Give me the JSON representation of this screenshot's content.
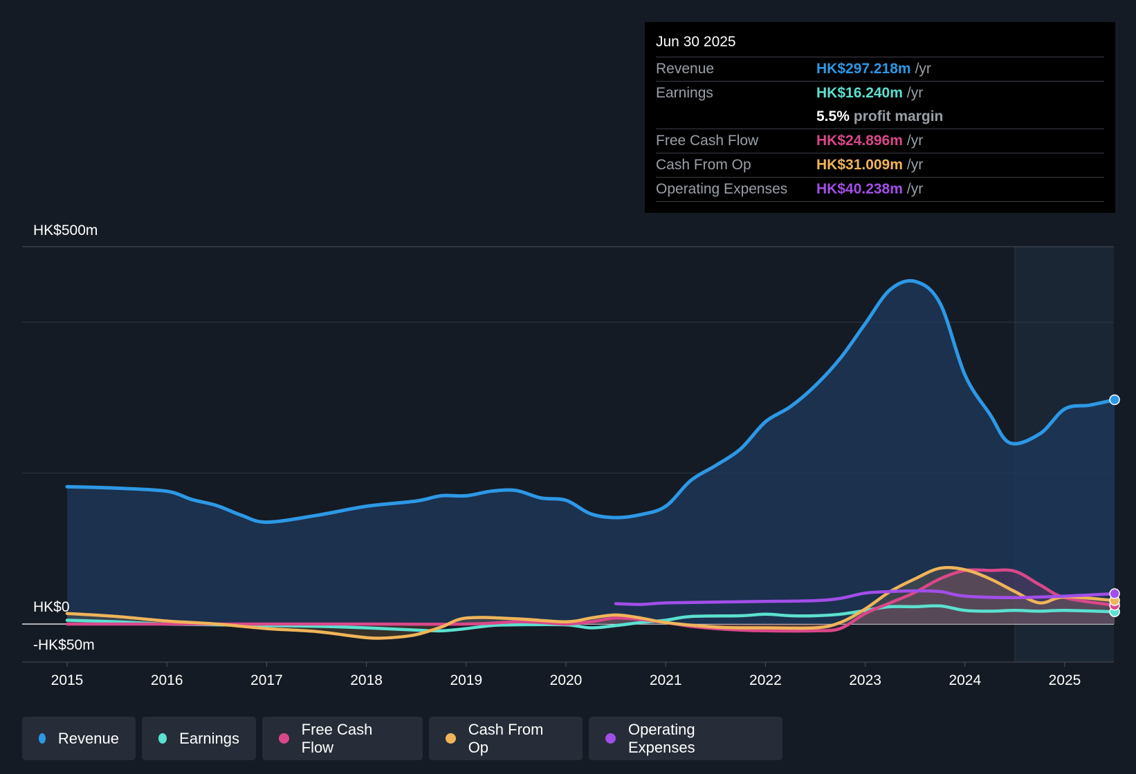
{
  "tooltip": {
    "date": "Jun 30 2025",
    "rows": [
      {
        "label": "Revenue",
        "value": "HK$297.218m",
        "unit": "/yr",
        "color": "#2d98e6"
      },
      {
        "label": "Earnings",
        "value": "HK$16.240m",
        "unit": "/yr",
        "color": "#5ce0cf"
      },
      {
        "label": "",
        "value": "5.5%",
        "unit": "profit margin",
        "color": "#ffffff"
      },
      {
        "label": "Free Cash Flow",
        "value": "HK$24.896m",
        "unit": "/yr",
        "color": "#d9488a"
      },
      {
        "label": "Cash From Op",
        "value": "HK$31.009m",
        "unit": "/yr",
        "color": "#f0b45a"
      },
      {
        "label": "Operating Expenses",
        "value": "HK$40.238m",
        "unit": "/yr",
        "color": "#a24ee8"
      }
    ]
  },
  "legend": [
    {
      "label": "Revenue",
      "color": "#2d98e6"
    },
    {
      "label": "Earnings",
      "color": "#5ce0cf"
    },
    {
      "label": "Free Cash Flow",
      "color": "#d9488a"
    },
    {
      "label": "Cash From Op",
      "color": "#f0b45a"
    },
    {
      "label": "Operating Expenses",
      "color": "#a24ee8"
    }
  ],
  "chart_data": {
    "type": "line",
    "y_labels": {
      "top": "HK$500m",
      "zero": "HK$0",
      "bottom": "-HK$50m"
    },
    "ylim": [
      -50,
      500
    ],
    "xlim": [
      2014.55,
      2025.5
    ],
    "x_ticks": [
      2015,
      2016,
      2017,
      2018,
      2019,
      2020,
      2021,
      2022,
      2023,
      2024,
      2025
    ],
    "forecast_start": 2024.5,
    "series": [
      {
        "name": "Revenue",
        "color": "#2d98e6",
        "fill": true,
        "points": [
          [
            2015,
            182
          ],
          [
            2015.5,
            180
          ],
          [
            2016,
            176
          ],
          [
            2016.25,
            165
          ],
          [
            2016.5,
            157
          ],
          [
            2016.75,
            144
          ],
          [
            2017,
            135
          ],
          [
            2017.5,
            144
          ],
          [
            2018,
            156
          ],
          [
            2018.5,
            163
          ],
          [
            2018.75,
            170
          ],
          [
            2019,
            170
          ],
          [
            2019.25,
            176
          ],
          [
            2019.5,
            177
          ],
          [
            2019.75,
            167
          ],
          [
            2020,
            164
          ],
          [
            2020.25,
            146
          ],
          [
            2020.5,
            141
          ],
          [
            2020.75,
            145
          ],
          [
            2021,
            156
          ],
          [
            2021.25,
            190
          ],
          [
            2021.5,
            210
          ],
          [
            2021.75,
            232
          ],
          [
            2022,
            268
          ],
          [
            2022.25,
            288
          ],
          [
            2022.5,
            316
          ],
          [
            2022.75,
            352
          ],
          [
            2023,
            398
          ],
          [
            2023.25,
            443
          ],
          [
            2023.5,
            454
          ],
          [
            2023.75,
            425
          ],
          [
            2024,
            330
          ],
          [
            2024.25,
            278
          ],
          [
            2024.45,
            240
          ],
          [
            2024.75,
            252
          ],
          [
            2025,
            285
          ],
          [
            2025.25,
            290
          ],
          [
            2025.5,
            297.218
          ]
        ]
      },
      {
        "name": "Earnings",
        "color": "#5ce0cf",
        "fill": false,
        "points": [
          [
            2015,
            5
          ],
          [
            2015.5,
            3
          ],
          [
            2016,
            0
          ],
          [
            2016.5,
            -1
          ],
          [
            2017,
            -2
          ],
          [
            2017.5,
            -3
          ],
          [
            2018,
            -5
          ],
          [
            2018.5,
            -8
          ],
          [
            2018.75,
            -9
          ],
          [
            2019,
            -6
          ],
          [
            2019.25,
            -2
          ],
          [
            2019.5,
            -1
          ],
          [
            2020,
            -1
          ],
          [
            2020.25,
            -5
          ],
          [
            2020.5,
            -2
          ],
          [
            2020.75,
            2
          ],
          [
            2021,
            5
          ],
          [
            2021.25,
            10
          ],
          [
            2021.75,
            11
          ],
          [
            2022,
            13
          ],
          [
            2022.25,
            11
          ],
          [
            2022.5,
            11
          ],
          [
            2022.75,
            13
          ],
          [
            2023,
            18
          ],
          [
            2023.25,
            23
          ],
          [
            2023.5,
            23
          ],
          [
            2023.75,
            24
          ],
          [
            2024,
            18
          ],
          [
            2024.25,
            17
          ],
          [
            2024.5,
            18
          ],
          [
            2024.75,
            17
          ],
          [
            2025,
            18
          ],
          [
            2025.5,
            16.24
          ]
        ]
      },
      {
        "name": "Free Cash Flow",
        "color": "#d9488a",
        "fill": true,
        "points": [
          [
            2015,
            0
          ],
          [
            2016,
            0
          ],
          [
            2017,
            0
          ],
          [
            2018,
            0
          ],
          [
            2019,
            0
          ],
          [
            2019.5,
            3
          ],
          [
            2019.75,
            2
          ],
          [
            2020,
            0
          ],
          [
            2020.25,
            3
          ],
          [
            2020.5,
            8
          ],
          [
            2020.75,
            6
          ],
          [
            2021,
            2
          ],
          [
            2021.25,
            -3
          ],
          [
            2021.5,
            -6
          ],
          [
            2021.75,
            -8
          ],
          [
            2022,
            -9
          ],
          [
            2022.5,
            -9
          ],
          [
            2022.75,
            -6
          ],
          [
            2023,
            14
          ],
          [
            2023.25,
            28
          ],
          [
            2023.5,
            42
          ],
          [
            2023.75,
            60
          ],
          [
            2024,
            71
          ],
          [
            2024.25,
            71
          ],
          [
            2024.5,
            70
          ],
          [
            2024.75,
            52
          ],
          [
            2025,
            35
          ],
          [
            2025.5,
            24.896
          ]
        ]
      },
      {
        "name": "Cash From Op",
        "color": "#f0b45a",
        "fill": true,
        "points": [
          [
            2015,
            14
          ],
          [
            2015.5,
            10
          ],
          [
            2016,
            4
          ],
          [
            2016.5,
            0
          ],
          [
            2017,
            -6
          ],
          [
            2017.5,
            -10
          ],
          [
            2018,
            -18
          ],
          [
            2018.25,
            -18
          ],
          [
            2018.5,
            -14
          ],
          [
            2018.75,
            -4
          ],
          [
            2019,
            8
          ],
          [
            2019.5,
            7
          ],
          [
            2020,
            3
          ],
          [
            2020.25,
            8
          ],
          [
            2020.5,
            12
          ],
          [
            2020.75,
            8
          ],
          [
            2021,
            2
          ],
          [
            2021.5,
            -4
          ],
          [
            2021.75,
            -5
          ],
          [
            2022,
            -5
          ],
          [
            2022.5,
            -5
          ],
          [
            2022.75,
            2
          ],
          [
            2023,
            20
          ],
          [
            2023.25,
            43
          ],
          [
            2023.5,
            60
          ],
          [
            2023.75,
            74
          ],
          [
            2024,
            72
          ],
          [
            2024.25,
            60
          ],
          [
            2024.5,
            43
          ],
          [
            2024.75,
            28
          ],
          [
            2025,
            36
          ],
          [
            2025.5,
            31.009
          ]
        ]
      },
      {
        "name": "Operating Expenses",
        "color": "#a24ee8",
        "fill": false,
        "points": [
          [
            2020.5,
            27
          ],
          [
            2020.75,
            26
          ],
          [
            2021,
            28
          ],
          [
            2021.5,
            29
          ],
          [
            2022,
            30
          ],
          [
            2022.5,
            31
          ],
          [
            2022.75,
            34
          ],
          [
            2023,
            41
          ],
          [
            2023.25,
            43
          ],
          [
            2023.5,
            44
          ],
          [
            2023.75,
            43
          ],
          [
            2024,
            37
          ],
          [
            2024.5,
            35
          ],
          [
            2025,
            37
          ],
          [
            2025.5,
            40.238
          ]
        ]
      }
    ]
  }
}
